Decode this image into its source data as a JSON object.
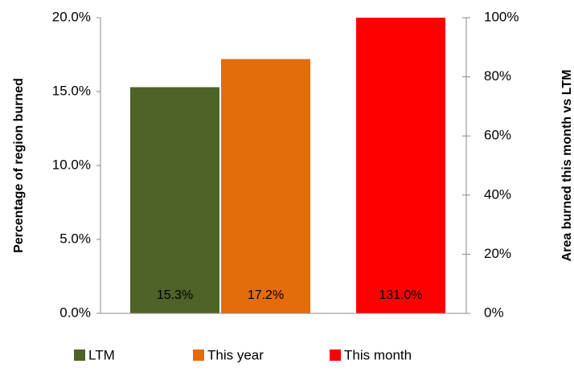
{
  "chart_data": {
    "type": "bar",
    "y_label": "Percentage of region burned",
    "y2_label": "Area burned this month vs LTM",
    "categories": [
      null
    ],
    "series": [
      {
        "name": "LTM",
        "color": "#4f6228",
        "values": [
          15.3
        ],
        "value_labels": [
          "15.3%"
        ]
      },
      {
        "name": "This year",
        "color": "#e46c0a",
        "values": [
          17.2
        ],
        "value_labels": [
          "17.2%"
        ]
      },
      {
        "name": "This month",
        "color": "#ff0000",
        "values": [
          131.0
        ],
        "value_labels": [
          "131.0%"
        ],
        "axis": "y2"
      }
    ],
    "ylim": [
      0,
      20
    ],
    "yticks": [
      {
        "value": 0,
        "label": "0.0%"
      },
      {
        "value": 5,
        "label": "5.0%"
      },
      {
        "value": 10,
        "label": "10.0%"
      },
      {
        "value": 15,
        "label": "15.0%"
      },
      {
        "value": 20,
        "label": "20.0%"
      }
    ],
    "y2lim": [
      0,
      100
    ],
    "y2ticks": [
      {
        "value": 0,
        "label": "0%"
      },
      {
        "value": 20,
        "label": "20%"
      },
      {
        "value": 40,
        "label": "40%"
      },
      {
        "value": 60,
        "label": "60%"
      },
      {
        "value": 80,
        "label": "80%"
      },
      {
        "value": 100,
        "label": "100%"
      }
    ],
    "legend": "bottom"
  }
}
